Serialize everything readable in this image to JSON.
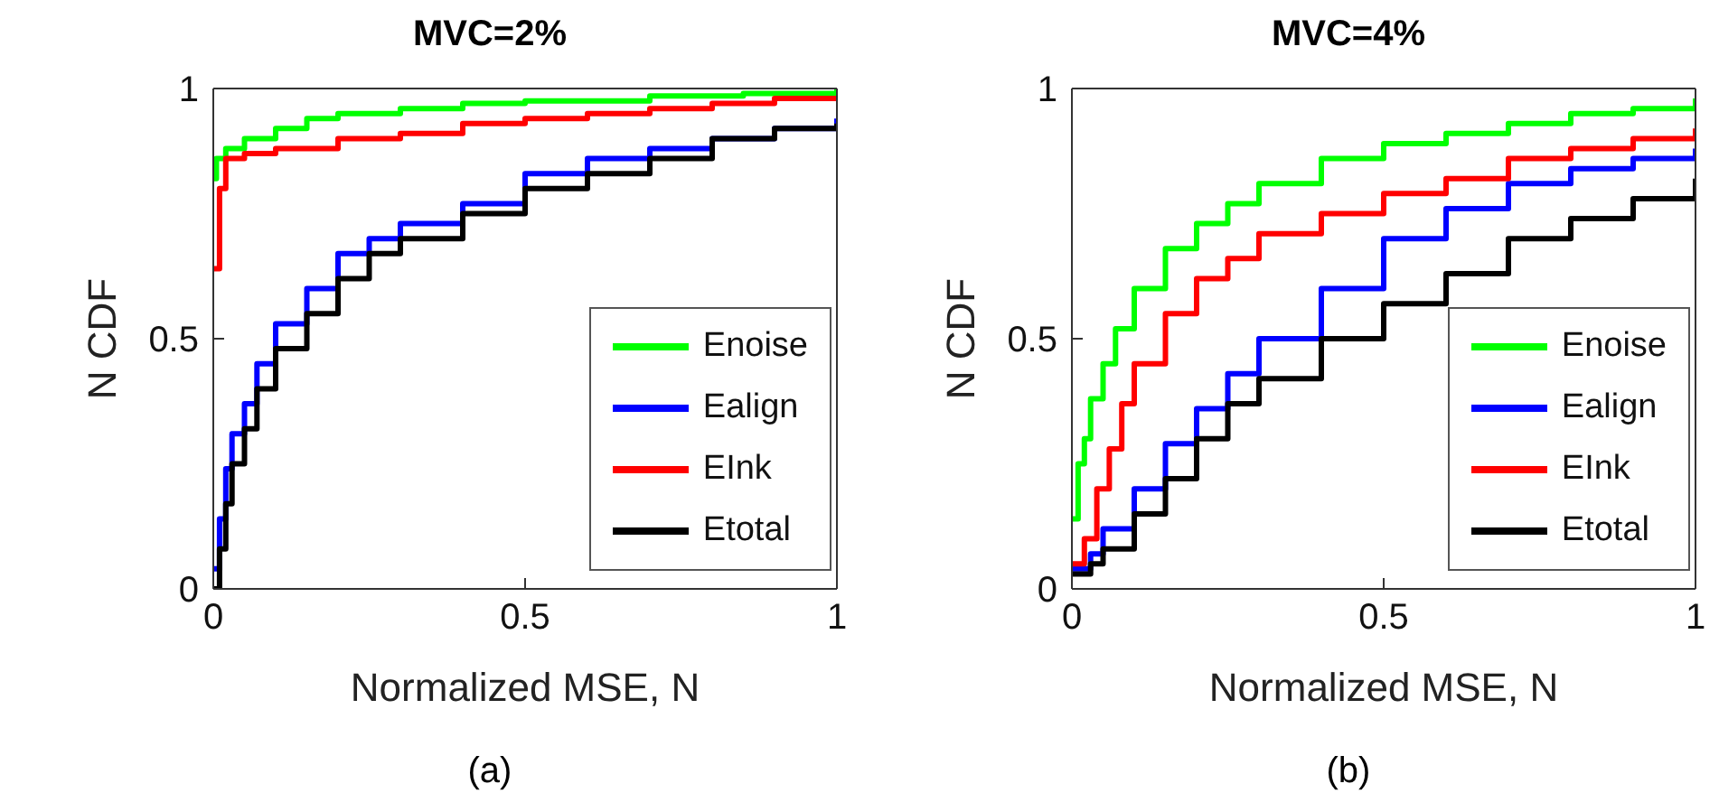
{
  "chart_data": [
    {
      "type": "step",
      "title": "MVC=2%",
      "xlabel": "Normalized MSE, N",
      "ylabel": "N CDF",
      "xlim": [
        0,
        1
      ],
      "xticks": [
        0,
        0.5,
        1
      ],
      "ylim": [
        0,
        1
      ],
      "yticks": [
        0,
        0.5,
        1
      ],
      "legend": "bottom right",
      "annotations": [
        "(a)"
      ],
      "series": [
        {
          "name": "Enoise",
          "color": "#00ff00",
          "x": [
            0,
            0.005,
            0.02,
            0.05,
            0.1,
            0.15,
            0.2,
            0.3,
            0.4,
            0.5,
            0.7,
            0.85,
            1
          ],
          "values": [
            0.82,
            0.86,
            0.88,
            0.9,
            0.92,
            0.94,
            0.95,
            0.96,
            0.97,
            0.975,
            0.985,
            0.99,
            1
          ]
        },
        {
          "name": "Ealign",
          "color": "#0000ff",
          "x": [
            0,
            0.01,
            0.02,
            0.03,
            0.05,
            0.07,
            0.1,
            0.15,
            0.2,
            0.25,
            0.3,
            0.4,
            0.5,
            0.6,
            0.7,
            0.8,
            0.9,
            1
          ],
          "values": [
            0.04,
            0.14,
            0.24,
            0.31,
            0.37,
            0.45,
            0.53,
            0.6,
            0.67,
            0.7,
            0.73,
            0.77,
            0.83,
            0.86,
            0.88,
            0.9,
            0.92,
            0.94
          ]
        },
        {
          "name": "EInk",
          "color": "#ff0000",
          "x": [
            0,
            0.01,
            0.02,
            0.05,
            0.1,
            0.2,
            0.3,
            0.4,
            0.5,
            0.6,
            0.7,
            0.8,
            0.9,
            1
          ],
          "values": [
            0.64,
            0.8,
            0.86,
            0.87,
            0.88,
            0.9,
            0.91,
            0.93,
            0.94,
            0.95,
            0.96,
            0.97,
            0.98,
            0.98
          ]
        },
        {
          "name": "Etotal",
          "color": "#000000",
          "x": [
            0,
            0.01,
            0.02,
            0.03,
            0.05,
            0.07,
            0.1,
            0.15,
            0.2,
            0.25,
            0.3,
            0.4,
            0.5,
            0.6,
            0.7,
            0.8,
            0.9,
            1
          ],
          "values": [
            0,
            0.08,
            0.17,
            0.25,
            0.32,
            0.4,
            0.48,
            0.55,
            0.62,
            0.67,
            0.7,
            0.75,
            0.8,
            0.83,
            0.86,
            0.9,
            0.92,
            0.93
          ]
        }
      ]
    },
    {
      "type": "step",
      "title": "MVC=4%",
      "xlabel": "Normalized MSE, N",
      "ylabel": "N CDF",
      "xlim": [
        0,
        1
      ],
      "xticks": [
        0,
        0.5,
        1
      ],
      "ylim": [
        0,
        1
      ],
      "yticks": [
        0,
        0.5,
        1
      ],
      "legend": "bottom right",
      "annotations": [
        "(b)"
      ],
      "series": [
        {
          "name": "Enoise",
          "color": "#00ff00",
          "x": [
            0,
            0.01,
            0.02,
            0.03,
            0.05,
            0.07,
            0.1,
            0.15,
            0.2,
            0.25,
            0.3,
            0.4,
            0.5,
            0.6,
            0.7,
            0.8,
            0.9,
            1
          ],
          "values": [
            0.14,
            0.25,
            0.3,
            0.38,
            0.45,
            0.52,
            0.6,
            0.68,
            0.73,
            0.77,
            0.81,
            0.86,
            0.89,
            0.91,
            0.93,
            0.95,
            0.96,
            0.98
          ]
        },
        {
          "name": "Ealign",
          "color": "#0000ff",
          "x": [
            0,
            0.03,
            0.05,
            0.1,
            0.15,
            0.2,
            0.25,
            0.3,
            0.4,
            0.5,
            0.6,
            0.7,
            0.8,
            0.9,
            1
          ],
          "values": [
            0.04,
            0.07,
            0.12,
            0.2,
            0.29,
            0.36,
            0.43,
            0.5,
            0.6,
            0.7,
            0.76,
            0.81,
            0.84,
            0.86,
            0.88
          ]
        },
        {
          "name": "EInk",
          "color": "#ff0000",
          "x": [
            0,
            0.02,
            0.04,
            0.06,
            0.08,
            0.1,
            0.15,
            0.2,
            0.25,
            0.3,
            0.4,
            0.5,
            0.6,
            0.7,
            0.8,
            0.9,
            1
          ],
          "values": [
            0.05,
            0.1,
            0.2,
            0.28,
            0.37,
            0.45,
            0.55,
            0.62,
            0.66,
            0.71,
            0.75,
            0.79,
            0.82,
            0.86,
            0.88,
            0.9,
            0.92
          ]
        },
        {
          "name": "Etotal",
          "color": "#000000",
          "x": [
            0,
            0.03,
            0.05,
            0.1,
            0.15,
            0.2,
            0.25,
            0.3,
            0.4,
            0.5,
            0.6,
            0.7,
            0.8,
            0.9,
            1
          ],
          "values": [
            0.03,
            0.05,
            0.08,
            0.15,
            0.22,
            0.3,
            0.37,
            0.42,
            0.5,
            0.57,
            0.63,
            0.7,
            0.74,
            0.78,
            0.82
          ]
        }
      ]
    }
  ]
}
